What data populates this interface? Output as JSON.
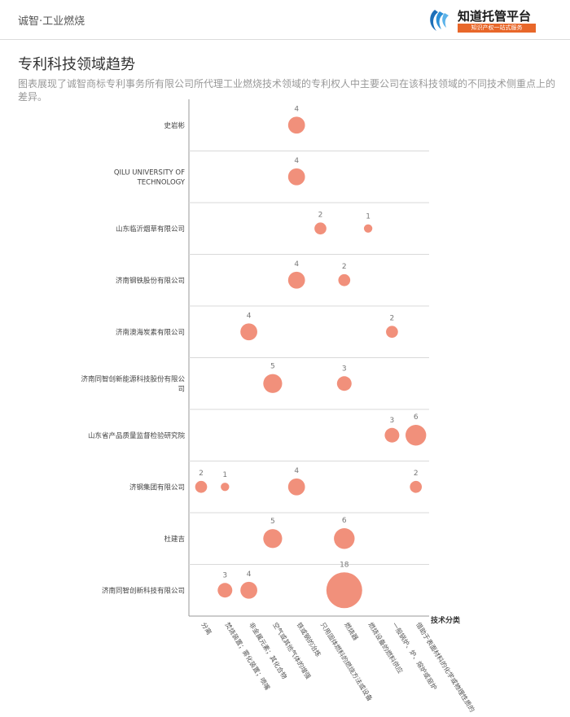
{
  "header": {
    "title": "诚智·工业燃烧"
  },
  "logo": {
    "name": "知道托管平台",
    "slogan": "知识产权一站式服务"
  },
  "section": {
    "title": "专利科技领域趋势",
    "description": "图表展现了诚智商标专利事务所有限公司所代理工业燃烧技术领域的专利权人中主要公司在该科技领域的不同技术侧重点上的差异。"
  },
  "colors": {
    "bubble": "#f08a74",
    "grid": "#d9d9d9",
    "axis": "#999999"
  },
  "chart_data": {
    "type": "scatter",
    "xlabel": "技术分类",
    "categories": [
      "分离",
      "焚烧装置；雾化装置；喷嘴",
      "非金属元素；其化合物",
      "空气或其他气体的增强",
      "铁或钢的冶炼",
      "只用固体燃料的燃烧方法或设备",
      "燃烧器",
      "燃烧设备的燃料供应",
      "一般锅炉、炉、熔炉或窑炉",
      "借助于表面材料的化学或物理性质的"
    ],
    "rows": [
      "史岩彬",
      "QILU UNIVERSITY OF TECHNOLOGY",
      "山东临沂烟草有限公司",
      "济南钢铁股份有限公司",
      "济南澳海炭素有限公司",
      "济南同智创新能源科技股份有限公司",
      "山东省产品质量监督检验研究院",
      "济钢集团有限公司",
      "杜建吉",
      "济南同智创新科技有限公司"
    ],
    "points": [
      {
        "row": 0,
        "col": 4,
        "value": 4
      },
      {
        "row": 1,
        "col": 4,
        "value": 4
      },
      {
        "row": 2,
        "col": 5,
        "value": 2
      },
      {
        "row": 2,
        "col": 7,
        "value": 1
      },
      {
        "row": 3,
        "col": 4,
        "value": 4
      },
      {
        "row": 3,
        "col": 6,
        "value": 2
      },
      {
        "row": 4,
        "col": 2,
        "value": 4
      },
      {
        "row": 4,
        "col": 8,
        "value": 2
      },
      {
        "row": 5,
        "col": 3,
        "value": 5
      },
      {
        "row": 5,
        "col": 6,
        "value": 3
      },
      {
        "row": 6,
        "col": 8,
        "value": 3
      },
      {
        "row": 6,
        "col": 9,
        "value": 6
      },
      {
        "row": 7,
        "col": 0,
        "value": 2
      },
      {
        "row": 7,
        "col": 1,
        "value": 1
      },
      {
        "row": 7,
        "col": 4,
        "value": 4
      },
      {
        "row": 7,
        "col": 9,
        "value": 2
      },
      {
        "row": 8,
        "col": 3,
        "value": 5
      },
      {
        "row": 8,
        "col": 6,
        "value": 6
      },
      {
        "row": 9,
        "col": 1,
        "value": 3
      },
      {
        "row": 9,
        "col": 2,
        "value": 4
      },
      {
        "row": 9,
        "col": 6,
        "value": 18
      }
    ]
  }
}
